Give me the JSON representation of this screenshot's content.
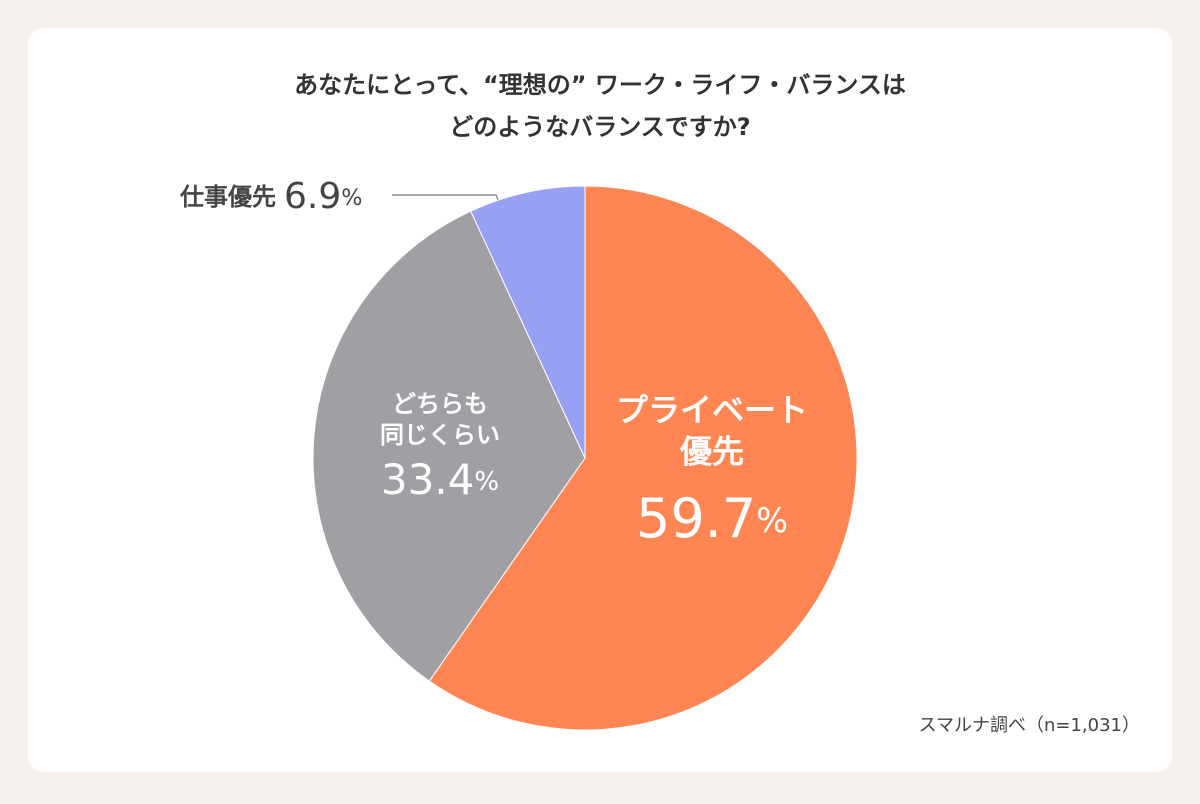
{
  "chart_data": {
    "type": "pie",
    "title": "あなたにとって、“理想の” ワーク・ライフ・バランスは\nどのようなバランスですか?",
    "categories": [
      "プライベート\n優先",
      "どちらも\n同じくらい",
      "仕事優先"
    ],
    "values": [
      59.7,
      33.4,
      6.9
    ],
    "value_labels": [
      "59.7%",
      "33.4%",
      "6.9%"
    ],
    "colors": [
      "#ff8552",
      "#a09fa3",
      "#98a0f4"
    ],
    "source": "スマルナ調べ（n=1,031）"
  }
}
